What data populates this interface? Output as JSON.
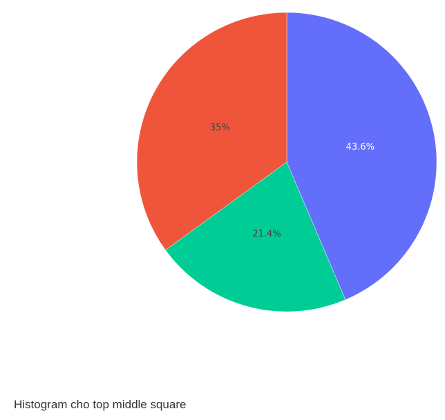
{
  "caption": "Histogram cho top middle square",
  "chart_data": {
    "type": "pie",
    "title": "",
    "direction": "clockwise",
    "start_angle_deg": 90,
    "slices": [
      {
        "value": 43.6,
        "label": "43.6%",
        "color": "#636efa",
        "label_color": "#ffffff"
      },
      {
        "value": 21.4,
        "label": "21.4%",
        "color": "#00cc96",
        "label_color": "#444444"
      },
      {
        "value": 35,
        "label": "35%",
        "color": "#ef553b",
        "label_color": "#444444"
      }
    ],
    "legend": "none"
  }
}
